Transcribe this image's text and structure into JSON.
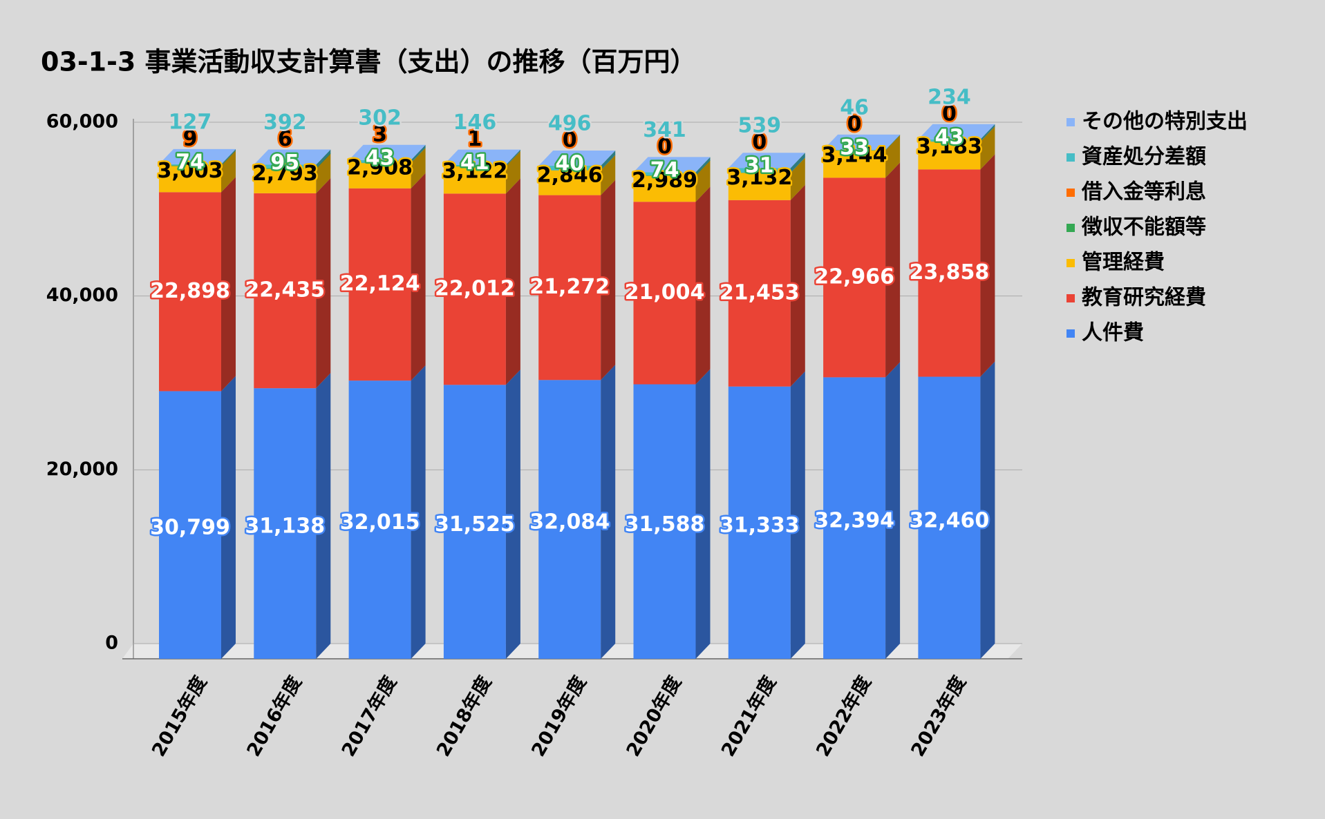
{
  "chart_data": {
    "type": "bar3d_stacked",
    "title": "03-1-3 事業活動収支計算書（支出）の推移（百万円）",
    "categories": [
      "2015年度",
      "2016年度",
      "2017年度",
      "2018年度",
      "2019年度",
      "2020年度",
      "2021年度",
      "2022年度",
      "2023年度"
    ],
    "series": [
      {
        "name": "人件費",
        "color": "#4285f4",
        "values": [
          30799,
          31138,
          32015,
          31525,
          32084,
          31588,
          31333,
          32394,
          32460
        ],
        "value_labels": [
          "30,799",
          "31,138",
          "32,015",
          "31,525",
          "32,084",
          "31,588",
          "31,333",
          "32,394",
          "32,460"
        ]
      },
      {
        "name": "教育研究経費",
        "color": "#ea4335",
        "values": [
          22898,
          22435,
          22124,
          22012,
          21272,
          21004,
          21453,
          22966,
          23858
        ],
        "value_labels": [
          "22,898",
          "22,435",
          "22,124",
          "22,012",
          "21,272",
          "21,004",
          "21,453",
          "22,966",
          "23,858"
        ]
      },
      {
        "name": "管理経費",
        "color": "#fbbc04",
        "values": [
          3003,
          2793,
          2908,
          3122,
          2846,
          2989,
          3132,
          3144,
          3183
        ],
        "value_labels": [
          "3,003",
          "2,793",
          "2,908",
          "3,122",
          "2,846",
          "2,989",
          "3,132",
          "3,144",
          "3,183"
        ]
      },
      {
        "name": "徴収不能額等",
        "color": "#34a853",
        "values": [
          74,
          95,
          43,
          41,
          40,
          74,
          31,
          33,
          43
        ]
      },
      {
        "name": "借入金等利息",
        "color": "#ff6d01",
        "values": [
          9,
          6,
          3,
          1,
          0,
          0,
          0,
          0,
          0
        ]
      },
      {
        "name": "資産処分差額",
        "color": "#46bdc6",
        "values": [
          127,
          392,
          302,
          146,
          496,
          341,
          539,
          46,
          234
        ]
      },
      {
        "name": "その他の特別支出",
        "color": "#8ab4f8",
        "values": [
          0,
          0,
          0,
          0,
          0,
          0,
          0,
          0,
          0
        ]
      }
    ],
    "ylim": [
      0,
      60000
    ],
    "yticks": [
      0,
      {
        "value": 20000,
        "label": "20,000"
      },
      {
        "value": 40000,
        "label": "40,000"
      },
      {
        "value": 60000,
        "label": "60,000"
      }
    ],
    "grid": true,
    "legend": "right"
  }
}
